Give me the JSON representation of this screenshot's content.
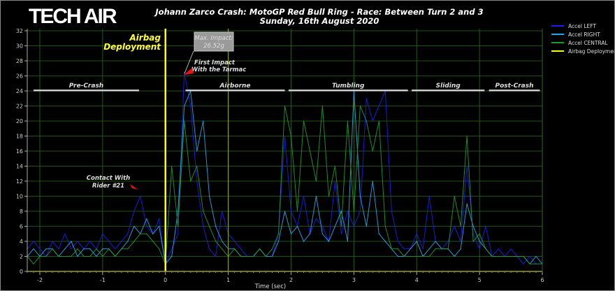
{
  "logo_text": "TECH AIR",
  "chart_data": {
    "type": "line",
    "title": "Johann Zarco Crash: MotoGP Red Bull Ring - Race: Between Turn 2 and 3",
    "subtitle": "Sunday, 16th August 2020",
    "xlabel": "Time (sec)",
    "ylabel": "",
    "xlim": [
      -2.2,
      6
    ],
    "ylim": [
      0,
      32
    ],
    "grid": true,
    "legend_position": "top-right",
    "x_ticks": [
      -2,
      -1,
      0,
      1,
      2,
      3,
      4,
      5,
      6
    ],
    "y_ticks": [
      0,
      2,
      4,
      6,
      8,
      10,
      12,
      14,
      16,
      18,
      20,
      22,
      24,
      26,
      28,
      30,
      32
    ],
    "x_start": -2.2,
    "x_step": 0.1,
    "series": [
      {
        "name": "Accel LEFT",
        "color": "#1c1cf0",
        "values": [
          3,
          4,
          3,
          2,
          4,
          3,
          5,
          3,
          4,
          3,
          4,
          3,
          5,
          4,
          3,
          4,
          5,
          8,
          10,
          6,
          5,
          7,
          1,
          3,
          5,
          26.5,
          22,
          12,
          6,
          3,
          2,
          8,
          5,
          4,
          3,
          2,
          2,
          3,
          2,
          2,
          5,
          18,
          8,
          6,
          10,
          5,
          7,
          6,
          4,
          12,
          5,
          8,
          6,
          8,
          23,
          20,
          22,
          24,
          8,
          4,
          3,
          3,
          5,
          3,
          10,
          4,
          3,
          4,
          6,
          4,
          14,
          5,
          3,
          6,
          2,
          3,
          2,
          3,
          2,
          1,
          2,
          1,
          1
        ]
      },
      {
        "name": "Accel RIGHT",
        "color": "#22a8e8",
        "values": [
          2,
          3,
          2,
          3,
          3,
          2,
          3,
          4,
          2,
          3,
          3,
          2,
          3,
          3,
          2,
          3,
          4,
          6,
          5,
          7,
          5,
          6,
          1,
          2,
          8,
          22,
          24,
          16,
          20,
          10,
          6,
          4,
          3,
          3,
          2,
          2,
          2,
          3,
          2,
          2,
          4,
          8,
          5,
          6,
          4,
          5,
          10,
          5,
          4,
          6,
          8,
          4,
          24,
          10,
          6,
          12,
          5,
          4,
          3,
          2,
          2,
          3,
          4,
          2,
          3,
          4,
          3,
          3,
          2,
          3,
          9,
          6,
          4,
          3,
          2,
          2,
          2,
          2,
          2,
          2,
          1,
          2,
          1
        ]
      },
      {
        "name": "Accel CENTRAL",
        "color": "#1f9a2c",
        "values": [
          2,
          1,
          2,
          2,
          3,
          2,
          2,
          2,
          3,
          2,
          2,
          3,
          2,
          3,
          2,
          3,
          3,
          4,
          5,
          5,
          4,
          3,
          1,
          14,
          6,
          20,
          12,
          14,
          8,
          6,
          4,
          3,
          2,
          3,
          2,
          2,
          2,
          3,
          2,
          3,
          5,
          22,
          18,
          8,
          20,
          16,
          12,
          22,
          10,
          14,
          6,
          20,
          8,
          22,
          20,
          16,
          20,
          6,
          3,
          3,
          2,
          2,
          2,
          2,
          2,
          3,
          3,
          3,
          10,
          6,
          18,
          4,
          5,
          3,
          2,
          2,
          2,
          2,
          2,
          2,
          1,
          1,
          1
        ]
      },
      {
        "name": "Airbag Deployment",
        "color": "#ffff00",
        "x": 0
      }
    ],
    "phases": [
      {
        "label": "Pre-Crash",
        "start": -2.1,
        "end": -0.42
      },
      {
        "label": "Airborne",
        "start": 0.32,
        "end": 1.9
      },
      {
        "label": "Tumbling",
        "start": 1.96,
        "end": 3.86
      },
      {
        "label": "Sliding",
        "start": 3.92,
        "end": 5.08
      },
      {
        "label": "Post-Crash",
        "start": 5.15,
        "end": 5.96
      }
    ],
    "annotations": {
      "airbag": [
        "Airbag",
        "Deployment"
      ],
      "max_impact": [
        "Max. Impact:",
        "26.52g"
      ],
      "first_impact": [
        "First Impact",
        "With the Tarmac"
      ],
      "contact": [
        "Contact With",
        "Rider #21"
      ]
    }
  }
}
